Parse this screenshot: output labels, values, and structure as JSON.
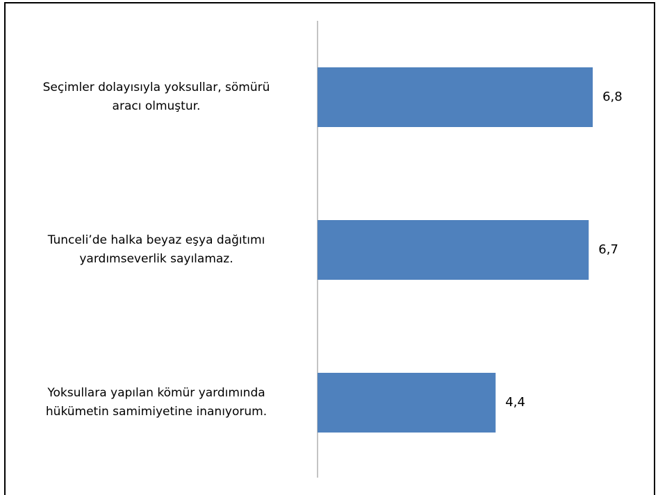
{
  "chart_data": {
    "type": "barh",
    "categories": [
      "Seçimler dolayısıyla yoksullar, sömürü\naracı olmuştur.",
      "Tunceli’de halka beyaz eşya dağıtımı\nyardımseverlik sayılamaz.",
      "Yoksullara yapılan kömür yardımında\nhükümetin samimiyetine inanıyorum."
    ],
    "values": [
      6.8,
      6.7,
      4.4
    ],
    "value_labels": [
      "6,8",
      "6,7",
      "4,4"
    ],
    "color": "#4f81bd",
    "xlim": [
      0,
      8
    ]
  }
}
